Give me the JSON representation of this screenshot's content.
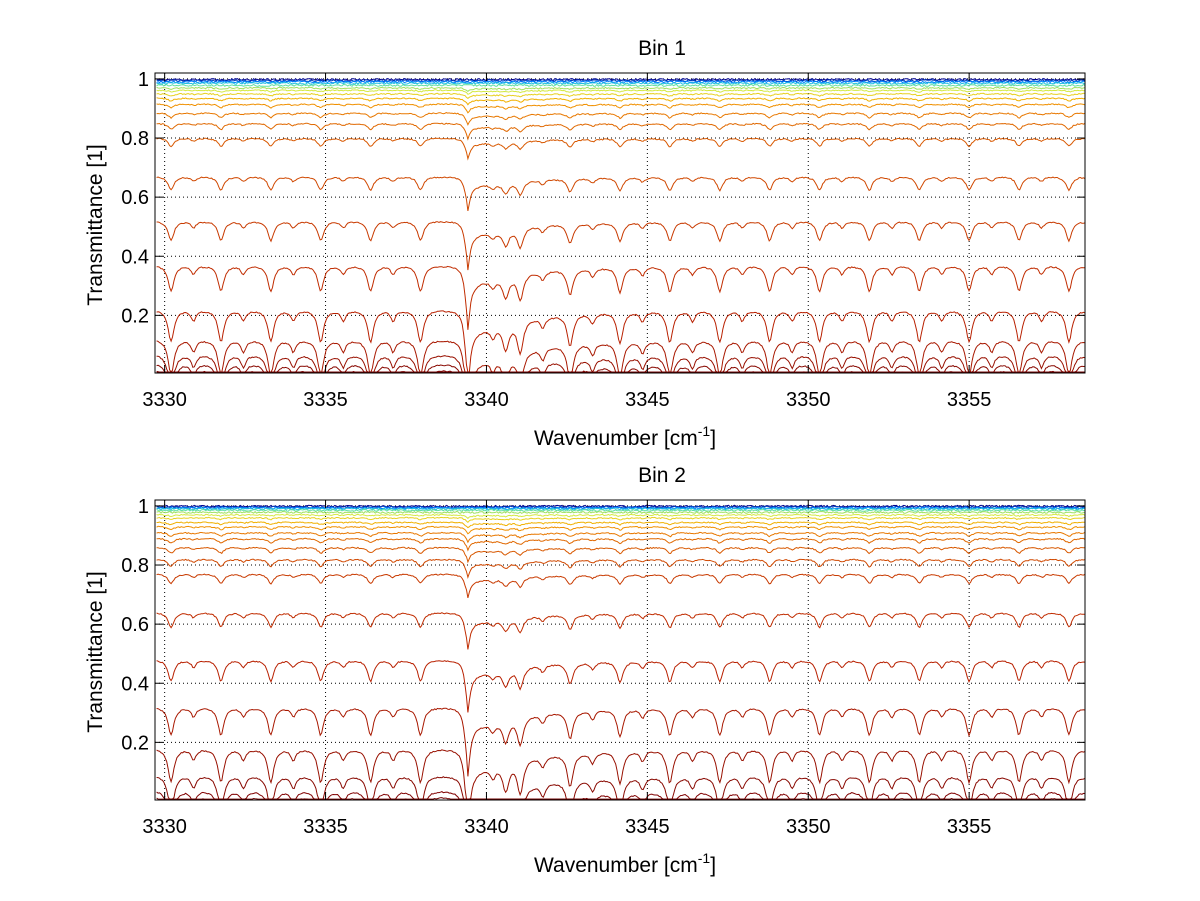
{
  "chart_data": [
    {
      "type": "line",
      "title": "Bin 1",
      "xlabel": "Wavenumber [cm",
      "xlabel_sup": "-1",
      "xlabel_end": "]",
      "ylabel": "Transmittance [1]",
      "xlim": [
        3329.7,
        3358.6
      ],
      "ylim": [
        0.005,
        1.02
      ],
      "xticks": [
        3330,
        3335,
        3340,
        3345,
        3350,
        3355
      ],
      "xtick_labels": [
        "3330",
        "3335",
        "3340",
        "3345",
        "3350",
        "3355"
      ],
      "yticks": [
        0.2,
        0.4,
        0.6,
        0.8,
        1
      ],
      "ytick_labels": [
        "0.2",
        "0.4",
        "0.6",
        "0.8",
        "1"
      ],
      "grid": true,
      "series_baselines": [
        0.998,
        0.994,
        0.99,
        0.985,
        0.978,
        0.97,
        0.962,
        0.95,
        0.935,
        0.915,
        0.885,
        0.85,
        0.8,
        0.67,
        0.52,
        0.37,
        0.22,
        0.12,
        0.07,
        0.04,
        0.02,
        0.01
      ],
      "main_line_center": 3339.4,
      "series_colors": [
        "#00008f",
        "#003fbf",
        "#0080ff",
        "#1fbfe0",
        "#60e0a0",
        "#a0e060",
        "#d4e840",
        "#e8d020",
        "#f0b000",
        "#f09000",
        "#e87800",
        "#e06800",
        "#d85800",
        "#d04800",
        "#c83a00",
        "#c02c00",
        "#b82000",
        "#a81800",
        "#981000",
        "#880800",
        "#800000",
        "#700000"
      ]
    },
    {
      "type": "line",
      "title": "Bin 2",
      "xlabel": "Wavenumber [cm",
      "xlabel_sup": "-1",
      "xlabel_end": "]",
      "ylabel": "Transmittance [1]",
      "xlim": [
        3329.7,
        3358.6
      ],
      "ylim": [
        0.005,
        1.02
      ],
      "xticks": [
        3330,
        3335,
        3340,
        3345,
        3350,
        3355
      ],
      "xtick_labels": [
        "3330",
        "3335",
        "3340",
        "3345",
        "3350",
        "3355"
      ],
      "yticks": [
        0.2,
        0.4,
        0.6,
        0.8,
        1
      ],
      "ytick_labels": [
        "0.2",
        "0.4",
        "0.6",
        "0.8",
        "1"
      ],
      "grid": true,
      "series_baselines": [
        0.999,
        0.996,
        0.993,
        0.99,
        0.985,
        0.978,
        0.97,
        0.96,
        0.945,
        0.93,
        0.91,
        0.89,
        0.86,
        0.82,
        0.77,
        0.64,
        0.48,
        0.32,
        0.18,
        0.09,
        0.04,
        0.02
      ],
      "main_line_center": 3339.4,
      "series_colors": [
        "#00008f",
        "#003fbf",
        "#0080ff",
        "#1fbfe0",
        "#60e0a0",
        "#a0e060",
        "#d4e840",
        "#e8d020",
        "#f0b000",
        "#f09000",
        "#e87800",
        "#e06800",
        "#d85800",
        "#d04800",
        "#c83a00",
        "#c02c00",
        "#b82000",
        "#a81800",
        "#981000",
        "#880800",
        "#800000",
        "#700000"
      ]
    }
  ]
}
